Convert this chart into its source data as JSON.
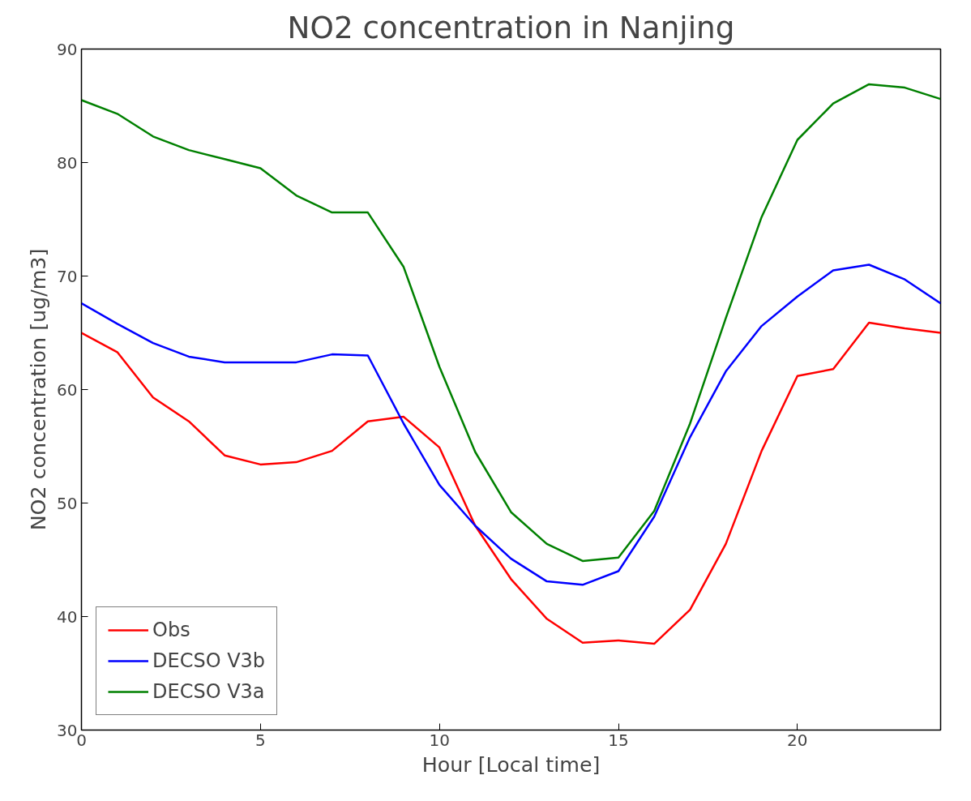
{
  "chart_data": {
    "type": "line",
    "title": "NO2 concentration in Nanjing",
    "xlabel": "Hour [Local time]",
    "ylabel": "NO2 concentration [ug/m3]",
    "x": [
      0,
      1,
      2,
      3,
      4,
      5,
      6,
      7,
      8,
      9,
      10,
      11,
      12,
      13,
      14,
      15,
      16,
      17,
      18,
      19,
      20,
      21,
      22,
      23,
      24
    ],
    "series": [
      {
        "name": "Obs",
        "color": "#ff0000",
        "values": [
          65.0,
          63.3,
          59.3,
          57.2,
          54.2,
          53.4,
          53.6,
          54.6,
          57.2,
          57.6,
          54.9,
          48.0,
          43.3,
          39.8,
          37.7,
          37.9,
          37.6,
          40.6,
          46.4,
          54.6,
          61.2,
          61.8,
          65.9,
          65.4,
          65.0
        ]
      },
      {
        "name": "DECSO V3b",
        "color": "#0000ff",
        "values": [
          67.6,
          65.8,
          64.1,
          62.9,
          62.4,
          62.4,
          62.4,
          63.1,
          63.0,
          57.0,
          51.6,
          48.0,
          45.1,
          43.1,
          42.8,
          44.0,
          48.8,
          55.8,
          61.6,
          65.6,
          68.2,
          70.5,
          71.0,
          69.7,
          67.6
        ]
      },
      {
        "name": "DECSO V3a",
        "color": "#008000",
        "values": [
          85.5,
          84.3,
          82.3,
          81.1,
          80.3,
          79.5,
          77.1,
          75.6,
          75.6,
          70.8,
          62.0,
          54.5,
          49.2,
          46.4,
          44.9,
          45.2,
          49.3,
          57.0,
          66.3,
          75.2,
          82.0,
          85.2,
          86.9,
          86.6,
          85.6
        ]
      }
    ],
    "xlim": [
      0,
      24
    ],
    "ylim": [
      30,
      90
    ],
    "xticks": [
      0,
      5,
      10,
      15,
      20
    ],
    "yticks": [
      30,
      40,
      50,
      60,
      70,
      80,
      90
    ],
    "grid": false,
    "legend": "bottom left",
    "marker": "none",
    "line_style": "solid"
  }
}
